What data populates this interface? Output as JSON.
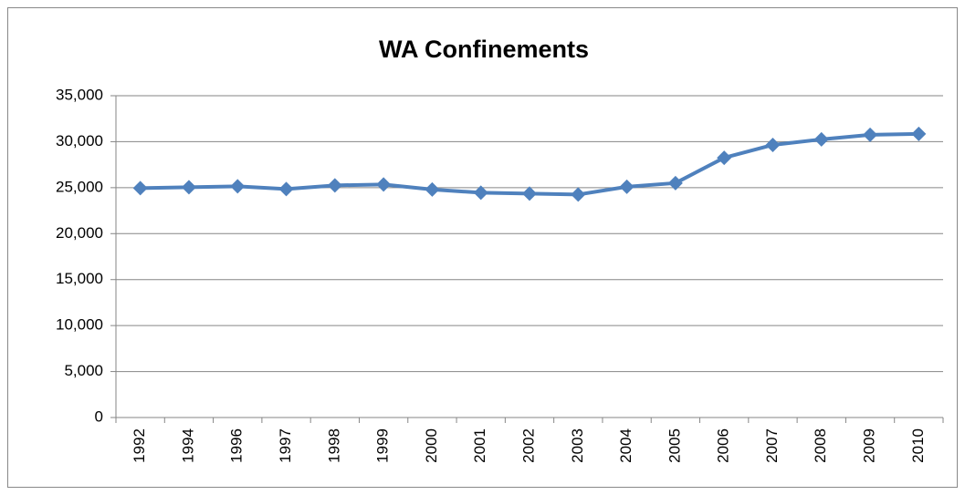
{
  "chart_data": {
    "type": "line",
    "title": "WA Confinements",
    "categories": [
      "1992",
      "1994",
      "1996",
      "1997",
      "1998",
      "1999",
      "2000",
      "2001",
      "2002",
      "2003",
      "2004",
      "2005",
      "2006",
      "2007",
      "2008",
      "2009",
      "2010"
    ],
    "series": [
      {
        "name": "Confinements",
        "color": "#4f81bd",
        "values": [
          24950,
          25050,
          25150,
          24850,
          25250,
          25350,
          24800,
          24450,
          24350,
          24250,
          25100,
          25500,
          28250,
          29650,
          30250,
          30750,
          30850
        ]
      }
    ],
    "ylim": [
      0,
      35000
    ],
    "yticks": [
      0,
      {
        "value": 5000,
        "label": "5,000"
      },
      {
        "value": 10000,
        "label": "10,000"
      },
      {
        "value": 15000,
        "label": "15,000"
      },
      {
        "value": 20000,
        "label": "20,000"
      },
      {
        "value": 25000,
        "label": "25,000"
      },
      {
        "value": 30000,
        "label": "30,000"
      },
      {
        "value": 35000,
        "label": "35,000"
      }
    ],
    "grid": true
  }
}
